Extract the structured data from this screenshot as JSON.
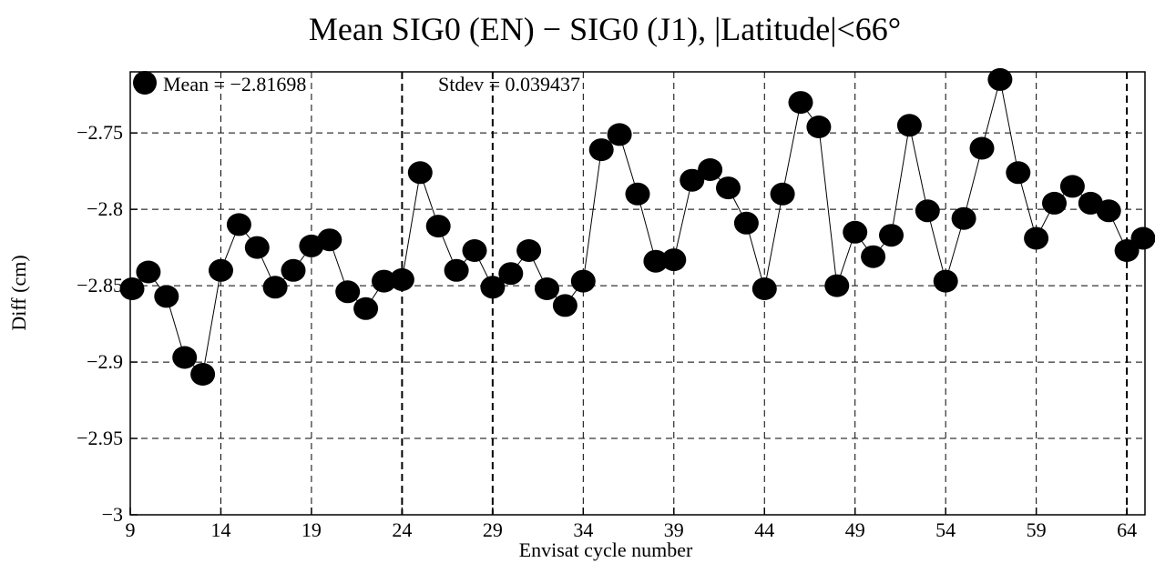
{
  "chart_data": {
    "type": "line",
    "title": "Mean SIG0 (EN) − SIG0 (J1), |Latitude|<66°",
    "xlabel": "Envisat cycle number",
    "ylabel": "Diff (cm)",
    "xlim": [
      9,
      65
    ],
    "ylim": [
      -3,
      -2.71
    ],
    "xticks": [
      9,
      14,
      19,
      24,
      29,
      34,
      39,
      44,
      49,
      54,
      59,
      64
    ],
    "yticks": [
      -3,
      -2.95,
      -2.9,
      -2.85,
      -2.8,
      -2.75
    ],
    "ytick_labels": [
      "−3",
      "−2.95",
      "−2.9",
      "−2.85",
      "−2.8",
      "−2.75"
    ],
    "grid": true,
    "strong_vlines": [
      24,
      29,
      64
    ],
    "legend": {
      "position": "top-left",
      "label": "Mean = −2.81698"
    },
    "annotations": [
      {
        "text": "Stdev = 0.039437"
      }
    ],
    "marker": "filled-circle",
    "color": "#000000",
    "x": [
      9,
      10,
      11,
      12,
      13,
      14,
      15,
      16,
      17,
      18,
      19,
      20,
      21,
      22,
      23,
      24,
      25,
      26,
      27,
      28,
      29,
      30,
      31,
      32,
      33,
      34,
      35,
      36,
      37,
      38,
      39,
      40,
      41,
      42,
      43,
      44,
      45,
      46,
      47,
      48,
      49,
      50,
      51,
      52,
      53,
      54,
      55,
      56,
      57,
      58,
      59,
      60,
      61,
      62,
      63,
      64,
      65
    ],
    "values": [
      -2.852,
      -2.841,
      -2.857,
      -2.897,
      -2.908,
      -2.84,
      -2.81,
      -2.825,
      -2.851,
      -2.84,
      -2.824,
      -2.82,
      -2.854,
      -2.865,
      -2.847,
      -2.846,
      -2.776,
      -2.811,
      -2.84,
      -2.827,
      -2.851,
      -2.842,
      -2.827,
      -2.852,
      -2.863,
      -2.847,
      -2.761,
      -2.751,
      -2.79,
      -2.834,
      -2.833,
      -2.781,
      -2.774,
      -2.786,
      -2.809,
      -2.852,
      -2.79,
      -2.73,
      -2.746,
      -2.85,
      -2.815,
      -2.831,
      -2.817,
      -2.745,
      -2.801,
      -2.847,
      -2.806,
      -2.76,
      -2.715,
      -2.776,
      -2.819,
      -2.796,
      -2.785,
      -2.796,
      -2.801,
      -2.827,
      -2.819
    ]
  }
}
